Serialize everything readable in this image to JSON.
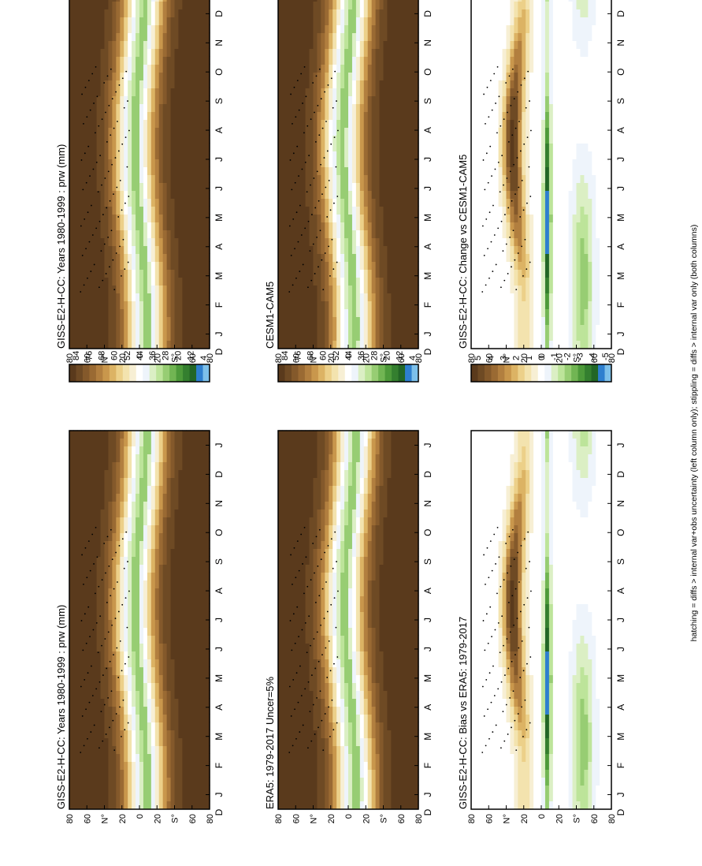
{
  "figure": {
    "footnote": "hatching = diffs > internal var+obs uncertainty (left column only); stippling = diffs > internal var only (both columns)"
  },
  "months": [
    "J",
    "F",
    "M",
    "A",
    "M",
    "J",
    "J",
    "A",
    "S",
    "O",
    "N",
    "D",
    "J"
  ],
  "months_left": "D",
  "lat_ticks": [
    "80",
    "60",
    "N°",
    "20",
    "0",
    "20",
    "S°",
    "60",
    "80"
  ],
  "colorbars": {
    "absolute": {
      "labels": [
        "84",
        "76",
        "68",
        "60",
        "52",
        "44",
        "36",
        "28",
        "20",
        "12",
        "4"
      ],
      "colors": [
        "#5a3a1c",
        "#6e4a24",
        "#84592b",
        "#9a6a33",
        "#b27f3f",
        "#c9974c",
        "#dcb364",
        "#ecd089",
        "#f3e3ae",
        "#f7efd4",
        "#ffffff",
        "#eef4fb",
        "#dbefc4",
        "#bde49a",
        "#97cd73",
        "#71b553",
        "#4d9a3a",
        "#347f2f",
        "#226626",
        "#2e7fcf",
        "#7dc0ea"
      ]
    },
    "difference": {
      "labels": [
        "5",
        "4",
        "3",
        "2",
        "1",
        "0",
        "-1",
        "-2",
        "-3",
        "-4",
        "-5"
      ],
      "colors": [
        "#5a3a1c",
        "#6e4a24",
        "#84592b",
        "#9a6a33",
        "#b27f3f",
        "#c9974c",
        "#dcb364",
        "#ecd089",
        "#f3e3ae",
        "#f7efd4",
        "#ffffff",
        "#eef4fb",
        "#dbefc4",
        "#bde49a",
        "#97cd73",
        "#71b553",
        "#4d9a3a",
        "#347f2f",
        "#226626",
        "#2e7fcf",
        "#7dc0ea"
      ]
    }
  },
  "panels": [
    {
      "id": "top-left",
      "title": "GISS-E2-H-CC: Years 1980-1999 : prw (mm)",
      "kind": "absolute"
    },
    {
      "id": "middle-left",
      "title": "ERA5: 1979-2017 Uncer=5%",
      "kind": "absolute"
    },
    {
      "id": "bottom-left",
      "title": "GISS-E2-H-CC: Bias vs ERA5: 1979-2017",
      "kind": "difference"
    },
    {
      "id": "top-right",
      "title": "GISS-E2-H-CC: Years 1980-1999 : prw (mm)",
      "kind": "absolute"
    },
    {
      "id": "middle-right",
      "title": "CESM1-CAM5",
      "kind": "absolute"
    },
    {
      "id": "bottom-right",
      "title": "GISS-E2-H-CC: Change vs CESM1-CAM5",
      "kind": "difference"
    }
  ],
  "chart_data": [
    {
      "type": "heatmap",
      "title": "GISS-E2-H-CC: Years 1980-1999 : prw (mm)",
      "x": "month (J..J)",
      "y": "latitude (80N..80S)",
      "ylim": [
        -90,
        90
      ],
      "colorbar": "absolute",
      "variable": "prw (mm)"
    },
    {
      "type": "heatmap",
      "title": "ERA5: 1979-2017 Uncer=5%",
      "x": "month (J..J)",
      "y": "latitude (80N..80S)",
      "ylim": [
        -90,
        90
      ],
      "colorbar": "absolute"
    },
    {
      "type": "heatmap",
      "title": "GISS-E2-H-CC: Bias vs ERA5: 1979-2017",
      "x": "month (J..J)",
      "y": "latitude (80N..80S)",
      "ylim": [
        -90,
        90
      ],
      "colorbar": "difference",
      "colorbar_range": [
        -5,
        5
      ]
    },
    {
      "type": "heatmap",
      "title": "GISS-E2-H-CC: Years 1980-1999 : prw (mm)",
      "x": "month (J..J)",
      "y": "latitude (80N..80S)",
      "ylim": [
        -90,
        90
      ],
      "colorbar": "absolute"
    },
    {
      "type": "heatmap",
      "title": "CESM1-CAM5",
      "x": "month (J..J)",
      "y": "latitude (80N..80S)",
      "ylim": [
        -90,
        90
      ],
      "colorbar": "absolute"
    },
    {
      "type": "heatmap",
      "title": "GISS-E2-H-CC: Change vs CESM1-CAM5",
      "x": "month (J..J)",
      "y": "latitude (80N..80S)",
      "ylim": [
        -90,
        90
      ],
      "colorbar": "difference",
      "colorbar_range": [
        -5,
        5
      ]
    }
  ]
}
